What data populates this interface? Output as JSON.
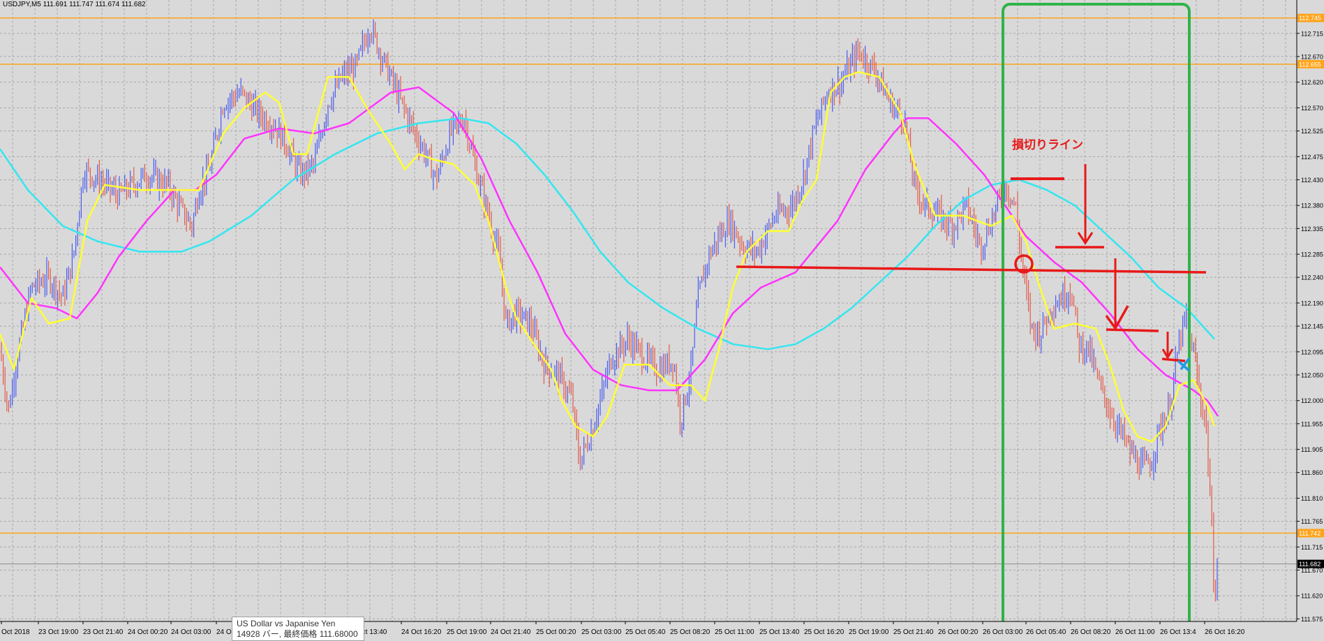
{
  "header": {
    "symbol": "USDJPY,M5",
    "ohlc": "111.691 111.747 111.674 111.682"
  },
  "tooltip": {
    "line1": "US Dollar vs Japanise Yen",
    "line2": "14928 バー, 最終価格 111.68000"
  },
  "annotation": {
    "stoploss_label": "損切りライン"
  },
  "colors": {
    "background": "#d9d9d9",
    "grid": "#a8a8a8",
    "bull": "#4a5cf0",
    "bear": "#e35a4a",
    "ma_fast": "#ffff33",
    "ma_mid": "#ff33ff",
    "ma_slow": "#33e6f0",
    "level": "#ffa31a",
    "markup_red": "#e81919",
    "box_green": "#2fb44a"
  },
  "chart_data": {
    "type": "candlestick",
    "y_axis": {
      "min": 111.57,
      "max": 112.78,
      "side": "right"
    },
    "y_ticks": [
      "112.715",
      "112.670",
      "112.620",
      "112.570",
      "112.525",
      "112.475",
      "112.430",
      "112.380",
      "112.335",
      "112.285",
      "112.240",
      "112.190",
      "112.145",
      "112.095",
      "112.050",
      "112.000",
      "111.955",
      "111.905",
      "111.860",
      "111.810",
      "111.765",
      "111.715",
      "111.670",
      "111.620",
      "111.575"
    ],
    "x_ticks": [
      "Oct 2018",
      "23 Oct 19:00",
      "23 Oct 21:40",
      "24 Oct 00:20",
      "24 Oct 03:00",
      "24 Oc",
      "Oct 13:40",
      "24 Oct 16:20",
      "25 Oct 19:00",
      "24 Oct 21:40",
      "25 Oct 00:20",
      "25 Oct 03:00",
      "25 Oct 05:40",
      "25 Oct 08:20",
      "25 Oct 11:00",
      "25 Oct 13:40",
      "25 Oct 16:20",
      "25 Oct 19:00",
      "25 Oct 21:40",
      "26 Oct 00:20",
      "26 Oct 03:00",
      "26 Oct 05:40",
      "26 Oct 08:20",
      "26 Oct 11:00",
      "26 Oct 13:4",
      "26 Oct 16:20"
    ],
    "price_levels": [
      {
        "price": 112.745,
        "label": "112.745"
      },
      {
        "price": 112.655,
        "label": "112.655"
      },
      {
        "price": 111.742,
        "label": "111.742"
      }
    ],
    "current_price": {
      "price": 111.682,
      "label": "111.682"
    },
    "moving_averages": {
      "fast_yellow": [
        [
          0,
          112.13
        ],
        [
          20,
          112.06
        ],
        [
          45,
          112.2
        ],
        [
          70,
          112.15
        ],
        [
          100,
          112.16
        ],
        [
          125,
          112.35
        ],
        [
          150,
          112.42
        ],
        [
          200,
          112.41
        ],
        [
          240,
          112.41
        ],
        [
          285,
          112.41
        ],
        [
          320,
          112.52
        ],
        [
          350,
          112.57
        ],
        [
          380,
          112.6
        ],
        [
          400,
          112.58
        ],
        [
          420,
          112.48
        ],
        [
          440,
          112.48
        ],
        [
          470,
          112.63
        ],
        [
          500,
          112.63
        ],
        [
          530,
          112.56
        ],
        [
          560,
          112.5
        ],
        [
          580,
          112.45
        ],
        [
          600,
          112.48
        ],
        [
          620,
          112.47
        ],
        [
          650,
          112.46
        ],
        [
          680,
          112.42
        ],
        [
          700,
          112.35
        ],
        [
          725,
          112.22
        ],
        [
          740,
          112.16
        ],
        [
          760,
          112.12
        ],
        [
          790,
          112.06
        ],
        [
          805,
          112.0
        ],
        [
          825,
          111.95
        ],
        [
          850,
          111.93
        ],
        [
          870,
          111.97
        ],
        [
          895,
          112.07
        ],
        [
          930,
          112.07
        ],
        [
          960,
          112.03
        ],
        [
          990,
          112.03
        ],
        [
          1010,
          112.0
        ],
        [
          1030,
          112.1
        ],
        [
          1050,
          112.22
        ],
        [
          1070,
          112.29
        ],
        [
          1100,
          112.33
        ],
        [
          1130,
          112.33
        ],
        [
          1150,
          112.39
        ],
        [
          1170,
          112.43
        ],
        [
          1190,
          112.6
        ],
        [
          1210,
          112.63
        ],
        [
          1230,
          112.64
        ],
        [
          1260,
          112.63
        ],
        [
          1290,
          112.56
        ],
        [
          1310,
          112.46
        ],
        [
          1340,
          112.36
        ],
        [
          1380,
          112.36
        ],
        [
          1420,
          112.34
        ],
        [
          1450,
          112.36
        ],
        [
          1470,
          112.31
        ],
        [
          1490,
          112.22
        ],
        [
          1510,
          112.14
        ],
        [
          1540,
          112.15
        ],
        [
          1570,
          112.14
        ],
        [
          1590,
          112.07
        ],
        [
          1610,
          111.98
        ],
        [
          1630,
          111.93
        ],
        [
          1650,
          111.92
        ],
        [
          1670,
          111.95
        ],
        [
          1690,
          112.03
        ],
        [
          1710,
          112.04
        ],
        [
          1730,
          111.99
        ],
        [
          1740,
          111.95
        ]
      ],
      "mid_magenta": [
        [
          0,
          112.26
        ],
        [
          40,
          112.19
        ],
        [
          80,
          112.18
        ],
        [
          110,
          112.16
        ],
        [
          140,
          112.21
        ],
        [
          170,
          112.28
        ],
        [
          210,
          112.35
        ],
        [
          250,
          112.41
        ],
        [
          280,
          112.41
        ],
        [
          310,
          112.44
        ],
        [
          350,
          112.51
        ],
        [
          400,
          112.53
        ],
        [
          450,
          112.52
        ],
        [
          500,
          112.54
        ],
        [
          560,
          112.6
        ],
        [
          600,
          112.61
        ],
        [
          650,
          112.56
        ],
        [
          690,
          112.47
        ],
        [
          730,
          112.35
        ],
        [
          770,
          112.25
        ],
        [
          810,
          112.13
        ],
        [
          850,
          112.06
        ],
        [
          890,
          112.03
        ],
        [
          930,
          112.02
        ],
        [
          970,
          112.02
        ],
        [
          1010,
          112.08
        ],
        [
          1050,
          112.17
        ],
        [
          1090,
          112.22
        ],
        [
          1140,
          112.25
        ],
        [
          1170,
          112.3
        ],
        [
          1200,
          112.35
        ],
        [
          1240,
          112.45
        ],
        [
          1280,
          112.52
        ],
        [
          1300,
          112.55
        ],
        [
          1330,
          112.55
        ],
        [
          1370,
          112.5
        ],
        [
          1410,
          112.44
        ],
        [
          1440,
          112.38
        ],
        [
          1470,
          112.32
        ],
        [
          1510,
          112.27
        ],
        [
          1550,
          112.23
        ],
        [
          1590,
          112.17
        ],
        [
          1630,
          112.1
        ],
        [
          1670,
          112.05
        ],
        [
          1710,
          112.02
        ],
        [
          1730,
          112.0
        ],
        [
          1745,
          111.97
        ]
      ],
      "slow_cyan": [
        [
          0,
          112.49
        ],
        [
          40,
          112.41
        ],
        [
          90,
          112.34
        ],
        [
          140,
          112.31
        ],
        [
          200,
          112.29
        ],
        [
          260,
          112.29
        ],
        [
          300,
          112.31
        ],
        [
          360,
          112.36
        ],
        [
          420,
          112.43
        ],
        [
          480,
          112.48
        ],
        [
          540,
          112.52
        ],
        [
          600,
          112.54
        ],
        [
          660,
          112.55
        ],
        [
          700,
          112.54
        ],
        [
          740,
          112.5
        ],
        [
          780,
          112.44
        ],
        [
          820,
          112.37
        ],
        [
          860,
          112.29
        ],
        [
          900,
          112.23
        ],
        [
          950,
          112.18
        ],
        [
          1000,
          112.14
        ],
        [
          1050,
          112.11
        ],
        [
          1100,
          112.1
        ],
        [
          1140,
          112.11
        ],
        [
          1180,
          112.14
        ],
        [
          1220,
          112.18
        ],
        [
          1260,
          112.23
        ],
        [
          1300,
          112.28
        ],
        [
          1340,
          112.34
        ],
        [
          1380,
          112.39
        ],
        [
          1420,
          112.42
        ],
        [
          1460,
          112.43
        ],
        [
          1500,
          112.41
        ],
        [
          1540,
          112.38
        ],
        [
          1580,
          112.33
        ],
        [
          1620,
          112.28
        ],
        [
          1660,
          112.22
        ],
        [
          1700,
          112.18
        ],
        [
          1740,
          112.12
        ]
      ]
    },
    "price_path": [
      [
        0,
        112.1
      ],
      [
        12,
        111.98
      ],
      [
        25,
        112.09
      ],
      [
        45,
        112.22
      ],
      [
        70,
        112.24
      ],
      [
        90,
        112.2
      ],
      [
        105,
        112.28
      ],
      [
        120,
        112.45
      ],
      [
        140,
        112.43
      ],
      [
        170,
        112.4
      ],
      [
        210,
        112.44
      ],
      [
        240,
        112.42
      ],
      [
        260,
        112.37
      ],
      [
        275,
        112.34
      ],
      [
        285,
        112.41
      ],
      [
        300,
        112.45
      ],
      [
        320,
        112.58
      ],
      [
        345,
        112.6
      ],
      [
        370,
        112.56
      ],
      [
        390,
        112.54
      ],
      [
        410,
        112.5
      ],
      [
        430,
        112.44
      ],
      [
        450,
        112.46
      ],
      [
        470,
        112.58
      ],
      [
        490,
        112.63
      ],
      [
        510,
        112.65
      ],
      [
        530,
        112.73
      ],
      [
        550,
        112.66
      ],
      [
        575,
        112.58
      ],
      [
        595,
        112.52
      ],
      [
        610,
        112.48
      ],
      [
        625,
        112.43
      ],
      [
        645,
        112.52
      ],
      [
        665,
        112.55
      ],
      [
        680,
        112.46
      ],
      [
        700,
        112.36
      ],
      [
        715,
        112.28
      ],
      [
        725,
        112.15
      ],
      [
        740,
        112.17
      ],
      [
        760,
        112.15
      ],
      [
        780,
        112.07
      ],
      [
        800,
        112.05
      ],
      [
        820,
        112.0
      ],
      [
        830,
        111.88
      ],
      [
        845,
        111.93
      ],
      [
        860,
        112.0
      ],
      [
        875,
        112.08
      ],
      [
        900,
        112.12
      ],
      [
        925,
        112.08
      ],
      [
        945,
        112.06
      ],
      [
        965,
        112.08
      ],
      [
        975,
        111.96
      ],
      [
        990,
        112.06
      ],
      [
        1000,
        112.2
      ],
      [
        1015,
        112.28
      ],
      [
        1030,
        112.32
      ],
      [
        1045,
        112.35
      ],
      [
        1065,
        112.3
      ],
      [
        1085,
        112.29
      ],
      [
        1110,
        112.36
      ],
      [
        1135,
        112.38
      ],
      [
        1150,
        112.43
      ],
      [
        1165,
        112.52
      ],
      [
        1185,
        112.6
      ],
      [
        1205,
        112.62
      ],
      [
        1230,
        112.68
      ],
      [
        1255,
        112.64
      ],
      [
        1275,
        112.58
      ],
      [
        1295,
        112.55
      ],
      [
        1310,
        112.42
      ],
      [
        1325,
        112.38
      ],
      [
        1345,
        112.36
      ],
      [
        1365,
        112.34
      ],
      [
        1385,
        112.38
      ],
      [
        1405,
        112.3
      ],
      [
        1420,
        112.35
      ],
      [
        1440,
        112.42
      ],
      [
        1455,
        112.38
      ],
      [
        1465,
        112.26
      ],
      [
        1478,
        112.14
      ],
      [
        1490,
        112.13
      ],
      [
        1505,
        112.18
      ],
      [
        1520,
        112.2
      ],
      [
        1535,
        112.22
      ],
      [
        1545,
        112.11
      ],
      [
        1560,
        112.1
      ],
      [
        1575,
        112.03
      ],
      [
        1590,
        111.98
      ],
      [
        1605,
        111.94
      ],
      [
        1620,
        111.9
      ],
      [
        1635,
        111.87
      ],
      [
        1650,
        111.88
      ],
      [
        1660,
        111.94
      ],
      [
        1675,
        111.98
      ],
      [
        1690,
        112.12
      ],
      [
        1700,
        112.16
      ],
      [
        1712,
        112.08
      ],
      [
        1720,
        112.0
      ],
      [
        1728,
        111.96
      ],
      [
        1735,
        111.78
      ],
      [
        1740,
        111.62
      ],
      [
        1745,
        111.68
      ]
    ]
  }
}
